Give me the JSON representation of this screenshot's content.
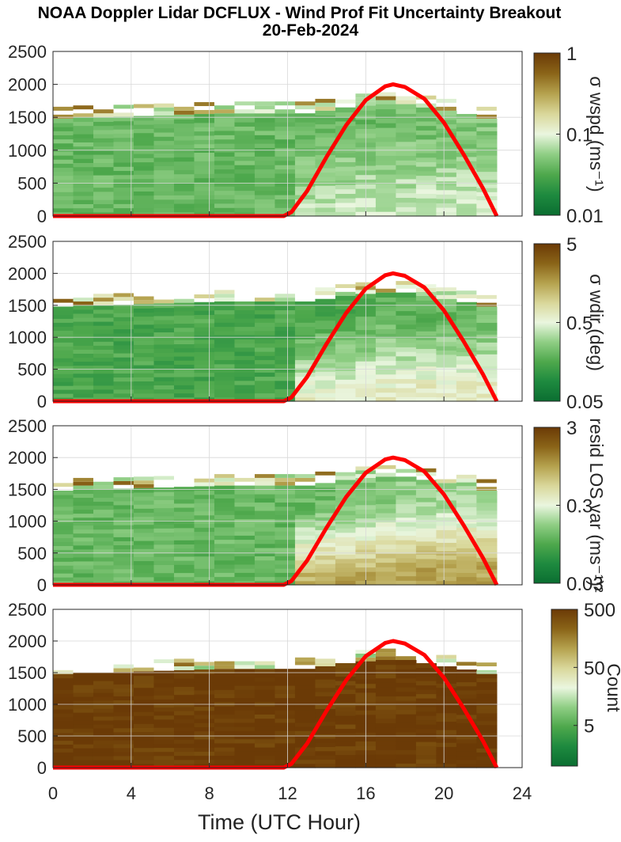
{
  "chart_data": {
    "type": "heatmap",
    "title": "NOAA Doppler Lidar DCFLUX - Wind Prof Fit Uncertainty Breakout",
    "subtitle": "20-Feb-2024",
    "xlabel": "Time (UTC Hour)",
    "xlim": [
      0,
      24
    ],
    "xticks": [
      "0",
      "4",
      "8",
      "12",
      "16",
      "20",
      "24"
    ],
    "grid": true,
    "panels": [
      {
        "ylim": [
          0,
          2500
        ],
        "yticks": [
          "0",
          "500",
          "1000",
          "1500",
          "2000",
          "2500"
        ],
        "colorbar": {
          "label": "σ wspd (ms⁻¹)",
          "scale": "log",
          "range": [
            0.01,
            1
          ],
          "ticks": [
            "0.01",
            "0.1",
            "1"
          ]
        },
        "data_top_m": [
          1480,
          1500,
          1500,
          1510,
          1520,
          1530,
          1540,
          1550,
          1560,
          1560,
          1560,
          1560,
          1560,
          1600,
          1650,
          1680,
          1700,
          1700,
          1650,
          1600,
          1550,
          1480
        ],
        "mean_level": 0.04,
        "daytime_level": 0.08
      },
      {
        "ylim": [
          0,
          2500
        ],
        "yticks": [
          "0",
          "500",
          "1000",
          "1500",
          "2000",
          "2500"
        ],
        "colorbar": {
          "label": "σ wdir (deg)",
          "scale": "log",
          "range": [
            0.05,
            5
          ],
          "ticks": [
            "0.05",
            "0.5",
            "5"
          ]
        },
        "data_top_m": [
          1480,
          1500,
          1500,
          1510,
          1520,
          1530,
          1540,
          1550,
          1560,
          1560,
          1560,
          1560,
          1560,
          1600,
          1650,
          1680,
          1700,
          1700,
          1650,
          1600,
          1550,
          1480
        ],
        "mean_level": 0.15,
        "daytime_level": 0.6
      },
      {
        "ylim": [
          0,
          2500
        ],
        "yticks": [
          "0",
          "500",
          "1000",
          "1500",
          "2000",
          "2500"
        ],
        "colorbar": {
          "label": "resid LOS var (ms⁻¹)²",
          "scale": "log",
          "range": [
            0.03,
            3
          ],
          "ticks": [
            "0.03",
            "0.3",
            "3"
          ]
        },
        "data_top_m": [
          1480,
          1500,
          1500,
          1510,
          1520,
          1530,
          1540,
          1550,
          1560,
          1560,
          1560,
          1560,
          1560,
          1600,
          1650,
          1680,
          1700,
          1700,
          1650,
          1600,
          1550,
          1480
        ],
        "mean_level": 0.12,
        "daytime_level": 0.9
      },
      {
        "ylim": [
          0,
          2500
        ],
        "yticks": [
          "0",
          "500",
          "1000",
          "1500",
          "2000",
          "2500"
        ],
        "colorbar": {
          "label": "Count",
          "scale": "log",
          "range": [
            1,
            500
          ],
          "ticks": [
            "5",
            "50",
            "500"
          ]
        },
        "data_top_m": [
          1480,
          1500,
          1500,
          1510,
          1520,
          1530,
          1540,
          1550,
          1560,
          1560,
          1560,
          1560,
          1560,
          1600,
          1650,
          1680,
          1700,
          1700,
          1650,
          1600,
          1550,
          1480
        ],
        "mean_level": 500,
        "daytime_level": 500
      }
    ],
    "solar_elevation_curve": {
      "color": "#ff0000",
      "x": [
        0,
        11.8,
        12.2,
        13,
        14,
        15,
        16,
        17,
        17.4,
        18,
        19,
        20,
        21,
        22,
        22.7
      ],
      "y": [
        0,
        0,
        60,
        380,
        900,
        1380,
        1760,
        1970,
        2000,
        1960,
        1780,
        1420,
        940,
        420,
        0
      ]
    }
  }
}
